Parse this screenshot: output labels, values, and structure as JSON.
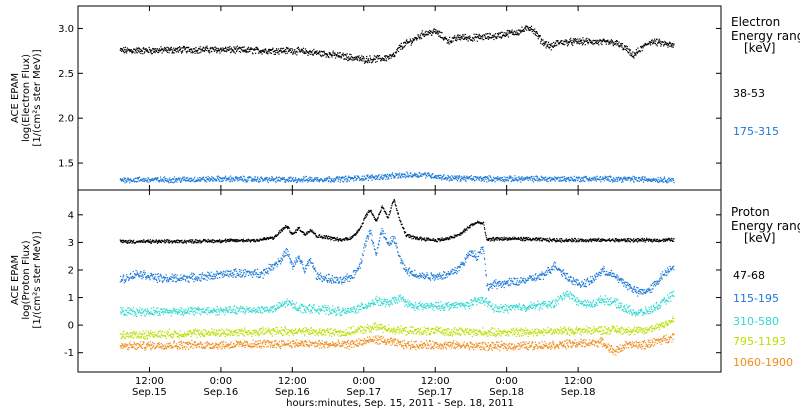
{
  "chart_data": [
    {
      "type": "scatter",
      "instrument": "ACE EPAM",
      "ylabel_line1": "ACE EPAM",
      "ylabel_line2": "log(Electron Flux)",
      "ylabel_line3": "[1/(cm²s ster MeV)]",
      "ylim": [
        1.2,
        3.25
      ],
      "yticks": [
        {
          "value": 1.5,
          "label": "1.5"
        },
        {
          "value": 2.0,
          "label": "2.0"
        },
        {
          "value": 2.5,
          "label": "2.5"
        },
        {
          "value": 3.0,
          "label": "3.0"
        }
      ],
      "legend": {
        "title_line1": "Electron",
        "title_line2": "Energy range",
        "unit": "[keV]",
        "placement": "right"
      },
      "series": [
        {
          "name": "38-53",
          "color": "#000000",
          "x": [
            7.0,
            12,
            18,
            24,
            30,
            36,
            42,
            48,
            51,
            53,
            54,
            56,
            58,
            60,
            62,
            63,
            64,
            66,
            68,
            70,
            72,
            74,
            76,
            78,
            79.5,
            80.5,
            81,
            84,
            86,
            88,
            90,
            92,
            93,
            94,
            96,
            98,
            100
          ],
          "y": [
            2.76,
            2.76,
            2.77,
            2.77,
            2.76,
            2.76,
            2.72,
            2.66,
            2.67,
            2.7,
            2.8,
            2.87,
            2.95,
            2.97,
            2.87,
            2.88,
            2.91,
            2.9,
            2.91,
            2.92,
            2.95,
            2.97,
            3.02,
            2.85,
            2.8,
            2.85,
            2.85,
            2.86,
            2.86,
            2.85,
            2.85,
            2.78,
            2.7,
            2.75,
            2.86,
            2.84,
            2.81
          ]
        },
        {
          "name": "175-315",
          "color": "#1a78d8",
          "x": [
            7.0,
            15,
            25,
            35,
            45,
            55,
            58,
            62,
            70,
            80,
            90,
            100
          ],
          "y": [
            1.32,
            1.32,
            1.33,
            1.32,
            1.33,
            1.37,
            1.38,
            1.34,
            1.33,
            1.33,
            1.33,
            1.32
          ]
        }
      ]
    },
    {
      "type": "scatter",
      "instrument": "ACE EPAM",
      "ylabel_line1": "ACE EPAM",
      "ylabel_line2": "log(Proton Flux)",
      "ylabel_line3": "[1/(cm²s ster MeV)]",
      "ylim": [
        -1.7,
        4.9
      ],
      "yticks": [
        {
          "value": -1,
          "label": "-1"
        },
        {
          "value": 0,
          "label": "0"
        },
        {
          "value": 1,
          "label": "1"
        },
        {
          "value": 2,
          "label": "2"
        },
        {
          "value": 3,
          "label": "3"
        },
        {
          "value": 4,
          "label": "4"
        }
      ],
      "legend": {
        "title_line1": "Proton",
        "title_line2": "Energy range",
        "unit": "[keV]",
        "placement": "right"
      },
      "series": [
        {
          "name": "47-68",
          "color": "#000000",
          "x": [
            7.0,
            15,
            25,
            30,
            33,
            34,
            35,
            36,
            37,
            38,
            39,
            40,
            42,
            44,
            46,
            47.5,
            48,
            49,
            50,
            51,
            52,
            53,
            54,
            55,
            56,
            58,
            60,
            62,
            64,
            66,
            67,
            68,
            68.6,
            70,
            74,
            80,
            86,
            92,
            98,
            100
          ],
          "y": [
            3.05,
            3.05,
            3.08,
            3.1,
            3.2,
            3.45,
            3.6,
            3.3,
            3.55,
            3.3,
            3.5,
            3.25,
            3.2,
            3.1,
            3.2,
            3.6,
            3.9,
            4.2,
            3.8,
            4.3,
            3.9,
            4.6,
            3.8,
            3.3,
            3.2,
            3.15,
            3.1,
            3.15,
            3.3,
            3.65,
            3.75,
            3.7,
            3.1,
            3.15,
            3.15,
            3.1,
            3.1,
            3.1,
            3.1,
            3.12
          ]
        },
        {
          "name": "115-195",
          "color": "#1a78d8",
          "x": [
            7.0,
            10,
            14,
            20,
            26,
            31,
            34,
            35,
            36,
            37,
            38,
            39,
            40,
            42,
            44,
            46,
            47.5,
            48,
            49,
            50,
            51,
            52,
            53,
            54,
            55,
            56,
            58,
            60,
            62,
            64,
            66,
            67,
            68,
            68.6,
            70,
            74,
            78,
            80,
            82,
            84,
            86,
            88,
            90,
            92,
            94,
            96,
            98,
            100
          ],
          "y": [
            1.65,
            1.9,
            1.7,
            1.75,
            1.9,
            1.9,
            2.4,
            2.7,
            2.1,
            2.5,
            2.0,
            2.4,
            1.8,
            1.7,
            1.6,
            1.8,
            2.3,
            2.9,
            3.4,
            2.6,
            3.5,
            2.9,
            3.2,
            2.4,
            2.0,
            1.9,
            1.8,
            1.8,
            1.85,
            2.1,
            2.7,
            2.5,
            2.9,
            1.4,
            1.5,
            1.6,
            1.8,
            2.2,
            1.8,
            1.5,
            1.6,
            2.0,
            1.8,
            1.5,
            1.2,
            1.3,
            1.8,
            2.2
          ]
        },
        {
          "name": "310-580",
          "color": "#2fd8d0",
          "x": [
            7.0,
            15,
            25,
            33,
            35,
            37,
            40,
            45,
            48,
            50,
            52,
            54,
            56,
            60,
            65,
            68,
            70,
            76,
            80,
            82,
            84,
            86,
            88,
            90,
            92,
            94,
            96,
            98,
            100
          ],
          "y": [
            0.5,
            0.52,
            0.55,
            0.6,
            0.85,
            0.65,
            0.6,
            0.5,
            0.7,
            0.9,
            0.8,
            1.0,
            0.7,
            0.7,
            0.75,
            0.95,
            0.6,
            0.7,
            0.8,
            1.2,
            0.85,
            0.75,
            0.95,
            0.85,
            0.6,
            0.45,
            0.55,
            0.8,
            1.15
          ]
        },
        {
          "name": "795-1193",
          "color": "#b8e000",
          "x": [
            7.0,
            15,
            25,
            35,
            45,
            50,
            55,
            60,
            70,
            80,
            90,
            95,
            100
          ],
          "y": [
            -0.35,
            -0.3,
            -0.25,
            -0.2,
            -0.25,
            -0.05,
            -0.2,
            -0.2,
            -0.25,
            -0.2,
            -0.15,
            -0.2,
            0.2
          ]
        },
        {
          "name": "1060-1900",
          "color": "#f08c1c",
          "x": [
            7.0,
            15,
            25,
            35,
            45,
            50,
            55,
            60,
            70,
            80,
            88,
            90,
            92,
            95,
            100
          ],
          "y": [
            -0.75,
            -0.7,
            -0.7,
            -0.65,
            -0.7,
            -0.5,
            -0.7,
            -0.7,
            -0.75,
            -0.7,
            -0.6,
            -0.95,
            -0.7,
            -0.7,
            -0.4
          ]
        }
      ]
    }
  ],
  "xaxis": {
    "label": "hours:minutes, Sep. 15, 2011 - Sep. 18, 2011",
    "xlim": [
      0,
      108
    ],
    "ticks": [
      {
        "value": 12,
        "time": "12:00",
        "date": "Sep.15"
      },
      {
        "value": 24,
        "time": "0:00",
        "date": "Sep.16"
      },
      {
        "value": 36,
        "time": "12:00",
        "date": "Sep.16"
      },
      {
        "value": 48,
        "time": "0:00",
        "date": "Sep.17"
      },
      {
        "value": 60,
        "time": "12:00",
        "date": "Sep.17"
      },
      {
        "value": 72,
        "time": "0:00",
        "date": "Sep.18"
      },
      {
        "value": 84,
        "time": "12:00",
        "date": "Sep.18"
      }
    ]
  }
}
